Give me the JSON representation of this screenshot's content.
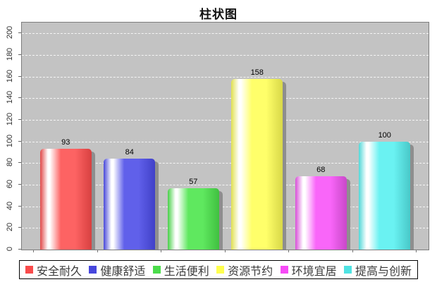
{
  "chart_data": {
    "type": "bar",
    "title": "柱状图",
    "categories": [
      "安全耐久",
      "健康舒适",
      "生活便利",
      "资源节约",
      "环境宜居",
      "提高与创新"
    ],
    "values": [
      93,
      84,
      57,
      158,
      68,
      100
    ],
    "series_colors": [
      {
        "left": "#e04848",
        "base": "#fd6363",
        "right": "#d84040",
        "legend": "#f94b4b"
      },
      {
        "left": "#4848d8",
        "base": "#6060ea",
        "right": "#4040c8",
        "legend": "#4747dd"
      },
      {
        "left": "#48d048",
        "base": "#5fe85f",
        "right": "#40c040",
        "legend": "#4bdc4b"
      },
      {
        "left": "#e0e050",
        "base": "#ffff6a",
        "right": "#d8d848",
        "legend": "#ffff4f"
      },
      {
        "left": "#d850d8",
        "base": "#f966f9",
        "right": "#c848c8",
        "legend": "#f74bf7"
      },
      {
        "left": "#50d8d8",
        "base": "#6af2f2",
        "right": "#48c8c8",
        "legend": "#4fe3e3"
      }
    ],
    "xlabel": "",
    "ylabel": "",
    "ylim": [
      0,
      210
    ],
    "y_ticks": [
      0,
      20,
      40,
      60,
      80,
      100,
      120,
      140,
      160,
      180,
      200
    ],
    "grid": "horizontal-dashed-white",
    "legend_position": "bottom",
    "plot_bg": "#c3c3c3",
    "shadow_color": "#8e8e8e",
    "value_labels_shown": true
  }
}
